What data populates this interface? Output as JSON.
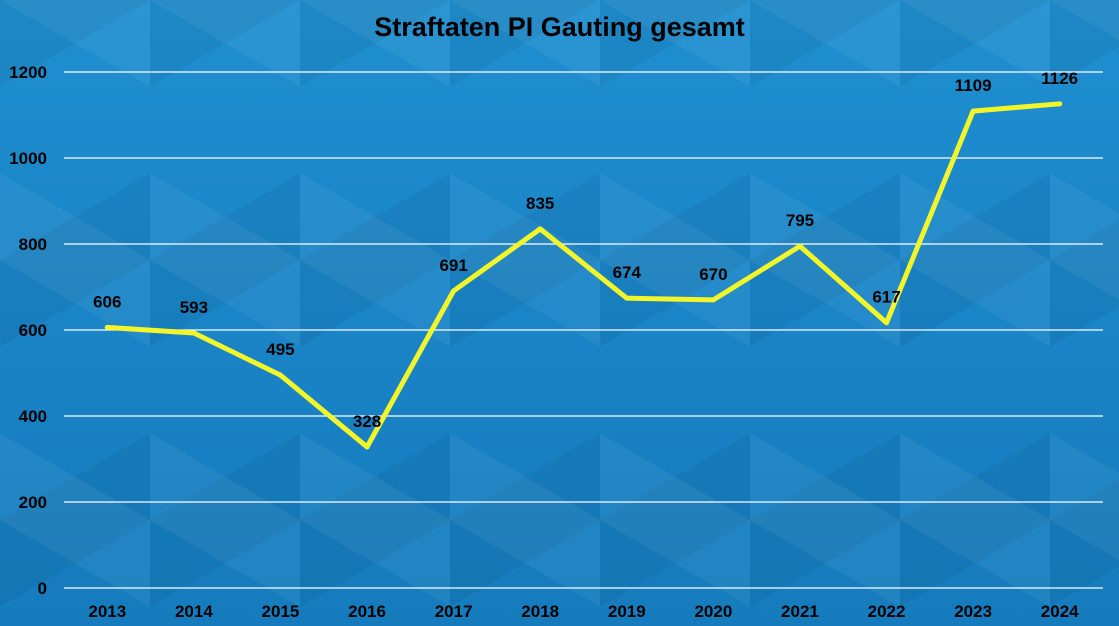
{
  "chart_data": {
    "type": "line",
    "title": "Straftaten PI Gauting gesamt",
    "categories": [
      "2013",
      "2014",
      "2015",
      "2016",
      "2017",
      "2018",
      "2019",
      "2020",
      "2021",
      "2022",
      "2023",
      "2024"
    ],
    "series": [
      {
        "values": [
          606,
          593,
          495,
          328,
          691,
          835,
          674,
          670,
          795,
          617,
          1109,
          1126
        ],
        "color": "#f2f52a"
      }
    ],
    "data_labels": [
      "606",
      "593",
      "495",
      "328",
      "691",
      "835",
      "674",
      "670",
      "795",
      "617",
      "1109",
      "1126"
    ],
    "y_ticks": [
      "0",
      "200",
      "400",
      "600",
      "800",
      "1000",
      "1200"
    ],
    "ylim": [
      0,
      1200
    ],
    "grid": true,
    "legend": "none",
    "xlabel": "",
    "ylabel": "",
    "colors": {
      "background": "#1a86c8",
      "gridline": "#ffffff",
      "line": "#f2f52a",
      "text": "#000000"
    }
  }
}
